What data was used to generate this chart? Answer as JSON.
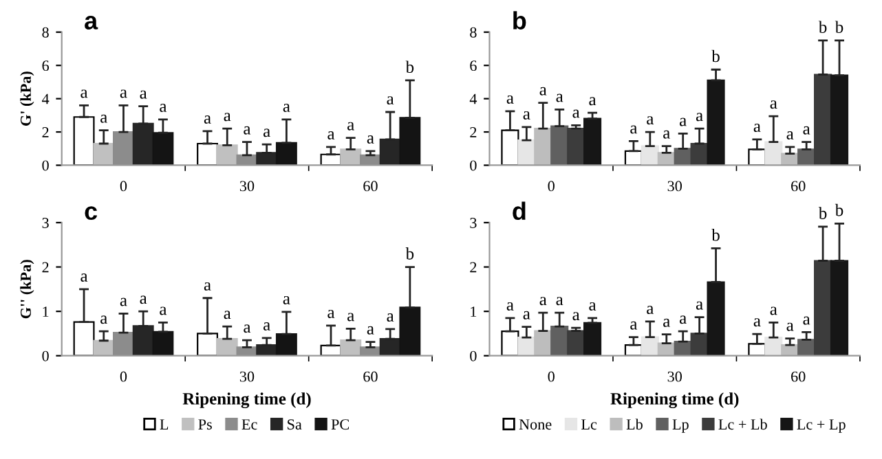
{
  "chart_data": [
    {
      "type": "bar",
      "title": "a",
      "ylabel": "G' (kPa)",
      "categories": [
        "0",
        "30",
        "60"
      ],
      "ylim": [
        0,
        8
      ],
      "yticks": [
        0,
        2,
        4,
        6,
        8
      ],
      "grid": false,
      "legend": false,
      "series": [
        {
          "color": "#ffffff",
          "values": [
            2.9,
            1.3,
            0.65
          ],
          "errors": [
            [
              2.9,
              3.6
            ],
            [
              1.3,
              2.05
            ],
            [
              0.65,
              1.1
            ]
          ],
          "value_labels": [
            "a",
            "a",
            "a"
          ]
        },
        {
          "color": "#c0c0c0",
          "values": [
            1.3,
            1.2,
            0.95
          ],
          "errors": [
            [
              1.3,
              2.1
            ],
            [
              1.2,
              2.2
            ],
            [
              0.95,
              1.65
            ]
          ],
          "value_labels": [
            "a",
            "a",
            "a"
          ]
        },
        {
          "color": "#8c8c8c",
          "values": [
            2.0,
            0.6,
            0.6
          ],
          "errors": [
            [
              2.0,
              3.6
            ],
            [
              0.6,
              1.4
            ],
            [
              0.6,
              0.85
            ]
          ],
          "value_labels": [
            "a",
            "a",
            "a"
          ]
        },
        {
          "color": "#262626",
          "values": [
            2.5,
            0.75,
            1.55
          ],
          "errors": [
            [
              2.5,
              3.55
            ],
            [
              0.75,
              1.25
            ],
            [
              1.55,
              3.2
            ]
          ],
          "value_labels": [
            "a",
            "a",
            "a"
          ]
        },
        {
          "color": "#141414",
          "values": [
            1.95,
            1.35,
            2.85
          ],
          "errors": [
            [
              1.95,
              2.75
            ],
            [
              1.35,
              2.75
            ],
            [
              2.85,
              5.1
            ]
          ],
          "value_labels": [
            "a",
            "a",
            "b"
          ]
        }
      ]
    },
    {
      "type": "bar",
      "title": "b",
      "categories": [
        "0",
        "30",
        "60"
      ],
      "ylim": [
        0,
        8
      ],
      "yticks": [
        0,
        2,
        4,
        6,
        8
      ],
      "grid": false,
      "legend": false,
      "series": [
        {
          "color": "#ffffff",
          "values": [
            2.1,
            0.85,
            0.95
          ],
          "errors": [
            [
              2.1,
              3.25
            ],
            [
              0.85,
              1.45
            ],
            [
              0.95,
              1.55
            ]
          ],
          "value_labels": [
            "a",
            "a",
            "a"
          ]
        },
        {
          "color": "#e6e6e6",
          "values": [
            1.5,
            1.15,
            1.4
          ],
          "errors": [
            [
              1.5,
              2.3
            ],
            [
              1.15,
              2.0
            ],
            [
              1.4,
              2.95
            ]
          ],
          "value_labels": [
            "a",
            "a",
            "a"
          ]
        },
        {
          "color": "#bdbdbd",
          "values": [
            2.2,
            0.75,
            0.7
          ],
          "errors": [
            [
              2.2,
              3.75
            ],
            [
              0.75,
              1.15
            ],
            [
              0.7,
              1.1
            ]
          ],
          "value_labels": [
            "a",
            "a",
            "a"
          ]
        },
        {
          "color": "#606060",
          "values": [
            2.35,
            1.0,
            0.95
          ],
          "errors": [
            [
              2.35,
              3.35
            ],
            [
              1.0,
              1.9
            ],
            [
              0.95,
              1.4
            ]
          ],
          "value_labels": [
            "a",
            "a",
            "a"
          ]
        },
        {
          "color": "#3c3c3c",
          "values": [
            2.2,
            1.3,
            5.45
          ],
          "errors": [
            [
              2.2,
              2.4
            ],
            [
              1.3,
              2.2
            ],
            [
              5.45,
              7.5
            ]
          ],
          "value_labels": [
            "a",
            "a",
            "b"
          ]
        },
        {
          "color": "#161616",
          "values": [
            2.8,
            5.1,
            5.4
          ],
          "errors": [
            [
              2.8,
              3.15
            ],
            [
              5.1,
              5.75
            ],
            [
              5.4,
              7.5
            ]
          ],
          "value_labels": [
            "a",
            "b",
            "b"
          ]
        }
      ]
    },
    {
      "type": "bar",
      "title": "c",
      "ylabel": "G'' (kPa)",
      "xlabel": "Ripening time (d)",
      "categories": [
        "0",
        "30",
        "60"
      ],
      "ylim": [
        0,
        3
      ],
      "yticks": [
        0,
        1,
        2,
        3
      ],
      "grid": false,
      "legend": "bottom",
      "series": [
        {
          "name": "L",
          "color": "#ffffff",
          "values": [
            0.76,
            0.5,
            0.23
          ],
          "errors": [
            [
              0.76,
              1.5
            ],
            [
              0.5,
              1.3
            ],
            [
              0.23,
              0.68
            ]
          ],
          "value_labels": [
            "a",
            "a",
            "a"
          ]
        },
        {
          "name": "Ps",
          "color": "#c0c0c0",
          "values": [
            0.34,
            0.38,
            0.35
          ],
          "errors": [
            [
              0.34,
              0.55
            ],
            [
              0.38,
              0.66
            ],
            [
              0.35,
              0.61
            ]
          ],
          "value_labels": [
            "a",
            "a",
            "a"
          ]
        },
        {
          "name": "Ec",
          "color": "#8c8c8c",
          "values": [
            0.52,
            0.19,
            0.19
          ],
          "errors": [
            [
              0.52,
              0.95
            ],
            [
              0.19,
              0.35
            ],
            [
              0.19,
              0.31
            ]
          ],
          "value_labels": [
            "a",
            "a",
            "a"
          ]
        },
        {
          "name": "Sa",
          "color": "#262626",
          "values": [
            0.67,
            0.24,
            0.38
          ],
          "errors": [
            [
              0.67,
              1.0
            ],
            [
              0.24,
              0.4
            ],
            [
              0.38,
              0.6
            ]
          ],
          "value_labels": [
            "a",
            "a",
            "a"
          ]
        },
        {
          "name": "PC",
          "color": "#141414",
          "values": [
            0.54,
            0.49,
            1.09
          ],
          "errors": [
            [
              0.54,
              0.75
            ],
            [
              0.49,
              0.99
            ],
            [
              1.09,
              2.0
            ]
          ],
          "value_labels": [
            "a",
            "a",
            "b"
          ]
        }
      ]
    },
    {
      "type": "bar",
      "title": "d",
      "xlabel": "Ripening time (d)",
      "categories": [
        "0",
        "30",
        "60"
      ],
      "ylim": [
        0,
        3
      ],
      "yticks": [
        0,
        1,
        2,
        3
      ],
      "grid": false,
      "legend": "bottom",
      "series": [
        {
          "name": "None",
          "color": "#ffffff",
          "values": [
            0.55,
            0.24,
            0.27
          ],
          "errors": [
            [
              0.55,
              0.85
            ],
            [
              0.24,
              0.42
            ],
            [
              0.27,
              0.49
            ]
          ],
          "value_labels": [
            "a",
            "a",
            "a"
          ]
        },
        {
          "name": "Lc",
          "color": "#e6e6e6",
          "values": [
            0.41,
            0.42,
            0.41
          ],
          "errors": [
            [
              0.41,
              0.65
            ],
            [
              0.42,
              0.77
            ],
            [
              0.41,
              0.75
            ]
          ],
          "value_labels": [
            "a",
            "a",
            "a"
          ]
        },
        {
          "name": "Lb",
          "color": "#bdbdbd",
          "values": [
            0.56,
            0.28,
            0.24
          ],
          "errors": [
            [
              0.56,
              0.97
            ],
            [
              0.28,
              0.48
            ],
            [
              0.24,
              0.39
            ]
          ],
          "value_labels": [
            "a",
            "a",
            "a"
          ]
        },
        {
          "name": "Lp",
          "color": "#606060",
          "values": [
            0.66,
            0.32,
            0.36
          ],
          "errors": [
            [
              0.66,
              0.97
            ],
            [
              0.32,
              0.55
            ],
            [
              0.36,
              0.53
            ]
          ],
          "value_labels": [
            "a",
            "a",
            "a"
          ]
        },
        {
          "name": "Lc + Lb",
          "color": "#3c3c3c",
          "values": [
            0.56,
            0.5,
            2.14
          ],
          "errors": [
            [
              0.56,
              0.63
            ],
            [
              0.5,
              0.87
            ],
            [
              2.14,
              2.91
            ]
          ],
          "value_labels": [
            "a",
            "a",
            "b"
          ]
        },
        {
          "name": "Lc + Lp",
          "color": "#161616",
          "values": [
            0.74,
            1.66,
            2.14
          ],
          "errors": [
            [
              0.74,
              0.85
            ],
            [
              1.66,
              2.42
            ],
            [
              2.14,
              2.98
            ]
          ],
          "value_labels": [
            "a",
            "b",
            "b"
          ]
        }
      ]
    }
  ]
}
